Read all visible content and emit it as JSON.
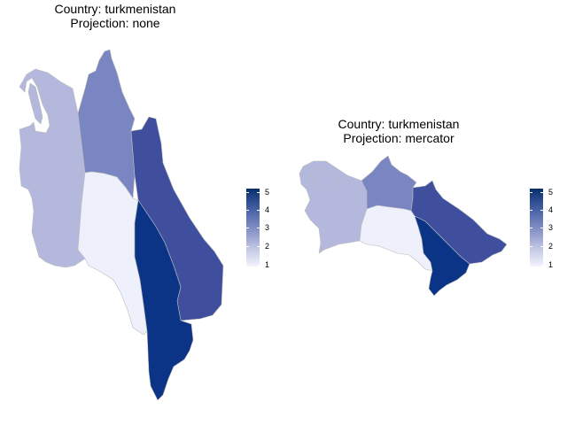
{
  "maps": [
    {
      "title_line1": "Country: turkmenistan",
      "title_line2": "Projection: none",
      "legend_ticks": [
        "5",
        "4",
        "3",
        "2",
        "1"
      ]
    },
    {
      "title_line1": "Country: turkmenistan",
      "title_line2": "Projection: mercator",
      "legend_ticks": [
        "5",
        "4",
        "3",
        "2",
        "1"
      ]
    }
  ],
  "colors": {
    "value_1": "#eef0fc",
    "value_2": "#b3b8dc",
    "value_3": "#7a86c2",
    "value_4": "#3f4f9e",
    "value_5": "#0b3486",
    "outline": "#bdbdbd"
  }
}
